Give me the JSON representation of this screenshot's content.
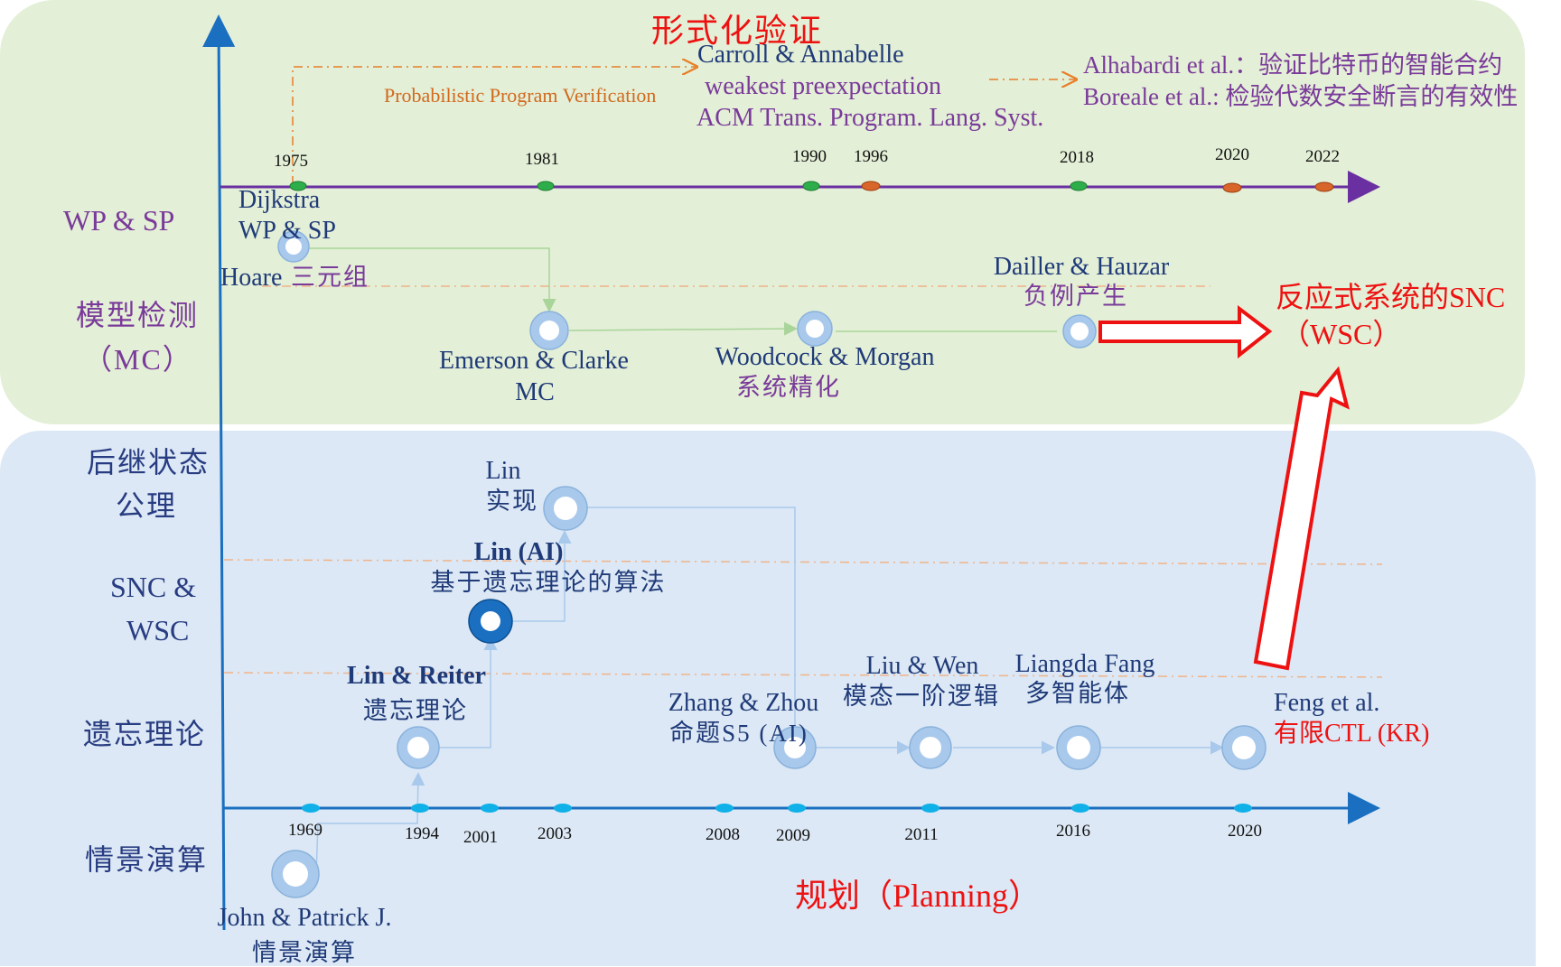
{
  "colors": {
    "top_panel": "#e3efd6",
    "bottom_panel": "#dce8f5",
    "purple_axis": "#6a2fa0",
    "blue_axis": "#1a6fc0",
    "red": "#ee1111",
    "orange": "#e87e28",
    "navy_text": "#1f3a78",
    "purple_text": "#7a3a9a"
  },
  "titles": {
    "formal_verification": "形式化验证",
    "planning": "规划（Planning）"
  },
  "row_labels": {
    "wp_sp": "WP & SP",
    "mc_line1": "模型检测",
    "mc_line2": "（MC）",
    "ssa_line1": "后继状态",
    "ssa_line2": "公理",
    "snc_line1": "SNC &",
    "snc_line2": "WSC",
    "forget": "遗忘理论",
    "sitcalc": "情景演算"
  },
  "top_years": [
    "1975",
    "1981",
    "1990",
    "1996",
    "2018",
    "2020",
    "2022"
  ],
  "bottom_years": [
    "1969",
    "1994",
    "2001",
    "2003",
    "2008",
    "2009",
    "2011",
    "2016",
    "2020"
  ],
  "nodes": {
    "dijkstra": {
      "name": "Dijkstra",
      "desc": "WP & SP"
    },
    "hoare": {
      "name": "Hoare",
      "desc": "三元组"
    },
    "emerson": {
      "name": "Emerson & Clarke",
      "desc": "MC"
    },
    "woodcock": {
      "name": "Woodcock & Morgan",
      "desc": "系统精化"
    },
    "dailler": {
      "name": "Dailler & Hauzar",
      "desc": "负例产生"
    },
    "carroll": {
      "line1": "Carroll & Annabelle",
      "line2": "weakest preexpectation",
      "line3": "ACM Trans. Program. Lang. Syst."
    },
    "ppv": "Probabilistic Program Verification",
    "alhabardi": "Alhabardi et al.：验证比特币的智能合约",
    "boreale": "Boreale et al.: 检验代数安全断言的有效性",
    "lin": {
      "name": "Lin",
      "desc": "实现"
    },
    "lin_ai": {
      "name": "Lin (AI)",
      "desc": "基于遗忘理论的算法"
    },
    "lin_reiter": {
      "name": "Lin & Reiter",
      "desc": "遗忘理论"
    },
    "zhang_zhou": {
      "name": "Zhang & Zhou",
      "desc": "命题S5 (AI)"
    },
    "liu_wen": {
      "name": "Liu & Wen",
      "desc": "模态一阶逻辑"
    },
    "liangda": {
      "name": "Liangda Fang",
      "desc": "多智能体"
    },
    "feng": {
      "name": "Feng et al.",
      "desc": "有限CTL (KR)"
    },
    "john": {
      "name": "John & Patrick J.",
      "desc": "情景演算"
    }
  },
  "result": {
    "line1": "反应式系统的SNC",
    "line2": "（WSC）"
  }
}
